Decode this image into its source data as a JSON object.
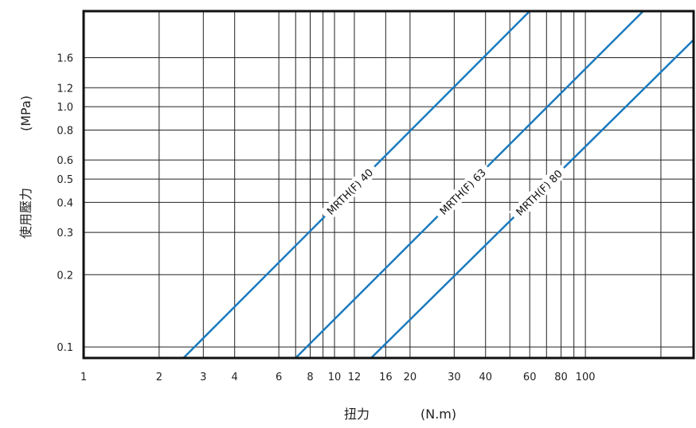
{
  "chart_data": {
    "type": "line",
    "title": "",
    "xlabel": "扭力",
    "xunit": "(N.m)",
    "ylabel": "使用壓力",
    "yunit": "(MPa)",
    "xscale": "log",
    "yscale": "log",
    "xlim": [
      1,
      270
    ],
    "ylim": [
      0.09,
      2.5
    ],
    "x_ticks": [
      1,
      2,
      3,
      4,
      6,
      8,
      10,
      12,
      16,
      20,
      30,
      40,
      60,
      80,
      100
    ],
    "x_tick_labels": [
      "1",
      "2",
      "3",
      "4",
      "6",
      "8",
      "10",
      "12",
      "16",
      "20",
      "30",
      "40",
      "60",
      "80",
      "100"
    ],
    "x_extra_gridlines": [
      7,
      9,
      50,
      70,
      90,
      200
    ],
    "y_ticks": [
      0.1,
      0.2,
      0.3,
      0.4,
      0.5,
      0.6,
      0.8,
      1.0,
      1.2,
      1.6
    ],
    "y_tick_labels": [
      "0.1",
      "0.2",
      "0.3",
      "0.4",
      "0.5",
      "0.6",
      "0.8",
      "1.0",
      "1.2",
      "1.6"
    ],
    "grid": true,
    "series": [
      {
        "name": "MRTH(F) 40",
        "color": "#1a7bbf",
        "x": [
          2.5,
          60
        ],
        "y": [
          0.09,
          2.5
        ]
      },
      {
        "name": "MRTH(F) 63",
        "color": "#1a7bbf",
        "x": [
          7.0,
          170
        ],
        "y": [
          0.09,
          2.5
        ]
      },
      {
        "name": "MRTH(F) 80",
        "color": "#1a7bbf",
        "x": [
          14.0,
          270
        ],
        "y": [
          0.09,
          1.9
        ]
      }
    ]
  }
}
